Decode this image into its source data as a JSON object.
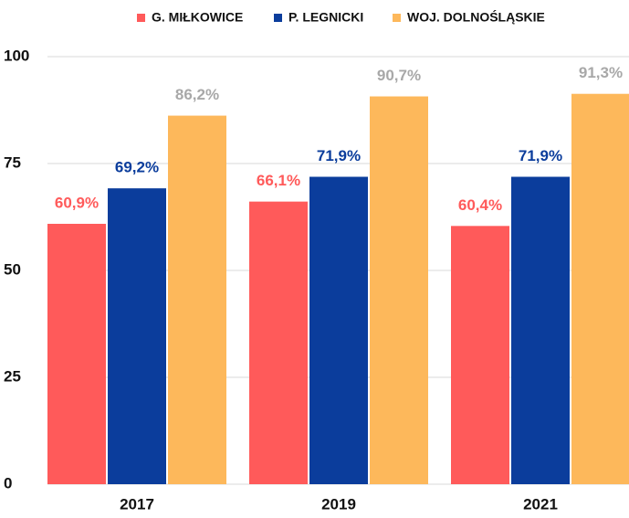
{
  "chart_data": {
    "type": "bar",
    "categories": [
      "2017",
      "2019",
      "2021"
    ],
    "series": [
      {
        "name": "G. MIŁKOWICE",
        "color": "#ff5a5a",
        "label_color": "#ff5a5a",
        "values": [
          60.9,
          66.1,
          60.4
        ],
        "value_labels": [
          "60,9%",
          "66,1%",
          "60,4%"
        ]
      },
      {
        "name": "P. LEGNICKI",
        "color": "#0b3d9c",
        "label_color": "#0b3d9c",
        "values": [
          69.2,
          71.9,
          71.9
        ],
        "value_labels": [
          "69,2%",
          "71,9%",
          "71,9%"
        ]
      },
      {
        "name": "WOJ. DOLNOŚLĄSKIE",
        "color": "#fdb85b",
        "label_color": "#a8a8a8",
        "values": [
          86.2,
          90.7,
          91.3
        ],
        "value_labels": [
          "86,2%",
          "90,7%",
          "91,3%"
        ]
      }
    ],
    "ylim": [
      0,
      100
    ],
    "yticks": [
      0,
      25,
      50,
      75,
      100
    ],
    "grid": true,
    "legend": "top"
  }
}
